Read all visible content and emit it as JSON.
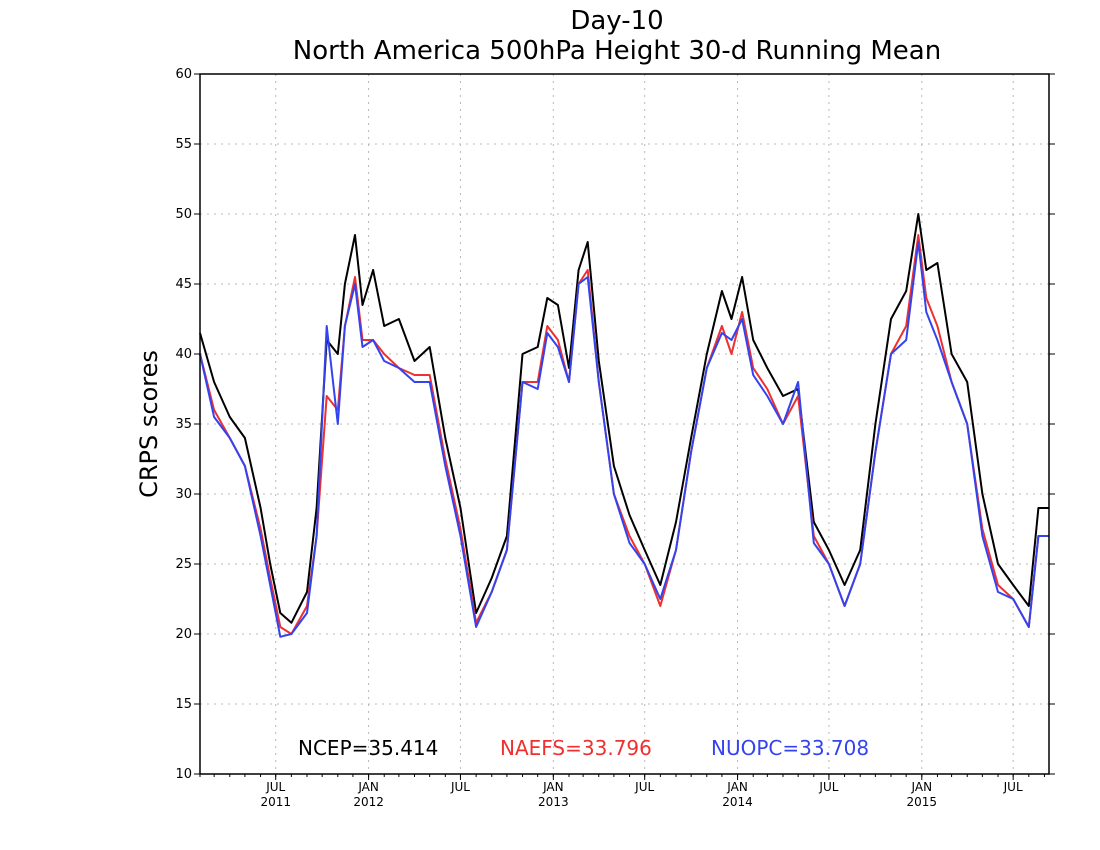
{
  "chart_data": {
    "type": "line",
    "title": "Day-10",
    "subtitle": "North America 500hPa Height 30-d Running Mean",
    "ylabel": "CRPS scores",
    "xlabel": "",
    "xlim": [
      "2011-02-01",
      "2015-09-10"
    ],
    "ylim": [
      10,
      60
    ],
    "yticks": [
      10,
      15,
      20,
      25,
      30,
      35,
      40,
      45,
      50,
      55,
      60
    ],
    "grid": true,
    "legend_position": "bottom-center",
    "xticks": [
      {
        "date": "2011-07-01",
        "label": "JUL",
        "year": "2011"
      },
      {
        "date": "2012-01-01",
        "label": "JAN",
        "year": "2012"
      },
      {
        "date": "2012-07-01",
        "label": "JUL",
        "year": ""
      },
      {
        "date": "2013-01-01",
        "label": "JAN",
        "year": "2013"
      },
      {
        "date": "2013-07-01",
        "label": "JUL",
        "year": ""
      },
      {
        "date": "2014-01-01",
        "label": "JAN",
        "year": "2014"
      },
      {
        "date": "2014-07-01",
        "label": "JUL",
        "year": ""
      },
      {
        "date": "2015-01-01",
        "label": "JAN",
        "year": "2015"
      },
      {
        "date": "2015-07-01",
        "label": "JUL",
        "year": ""
      }
    ],
    "series": [
      {
        "name": "NCEP",
        "legend": "NCEP=35.414",
        "color": "#000000",
        "x": [
          "2011-02-01",
          "2011-03-01",
          "2011-04-01",
          "2011-05-01",
          "2011-06-01",
          "2011-06-20",
          "2011-07-10",
          "2011-08-01",
          "2011-09-01",
          "2011-09-20",
          "2011-10-10",
          "2011-11-01",
          "2011-11-15",
          "2011-12-05",
          "2011-12-20",
          "2012-01-10",
          "2012-02-01",
          "2012-03-01",
          "2012-04-01",
          "2012-05-01",
          "2012-06-01",
          "2012-07-01",
          "2012-08-01",
          "2012-09-01",
          "2012-10-01",
          "2012-11-01",
          "2012-12-01",
          "2012-12-20",
          "2013-01-10",
          "2013-02-01",
          "2013-02-20",
          "2013-03-10",
          "2013-04-01",
          "2013-05-01",
          "2013-06-01",
          "2013-07-01",
          "2013-08-01",
          "2013-09-01",
          "2013-10-01",
          "2013-11-01",
          "2013-12-01",
          "2013-12-20",
          "2014-01-10",
          "2014-02-01",
          "2014-03-01",
          "2014-04-01",
          "2014-05-01",
          "2014-06-01",
          "2014-07-01",
          "2014-08-01",
          "2014-09-01",
          "2014-10-01",
          "2014-11-01",
          "2014-12-01",
          "2014-12-25",
          "2015-01-10",
          "2015-02-01",
          "2015-03-01",
          "2015-04-01",
          "2015-05-01",
          "2015-06-01",
          "2015-07-01",
          "2015-08-01",
          "2015-08-20",
          "2015-09-10"
        ],
        "values": [
          41.5,
          38,
          35.5,
          34,
          29,
          25,
          21.5,
          20.8,
          23,
          29,
          41,
          40,
          45,
          48.5,
          43.5,
          46,
          42,
          42.5,
          39.5,
          40.5,
          34,
          29,
          21.5,
          24,
          27,
          40,
          40.5,
          44,
          43.5,
          39,
          46,
          48,
          39.5,
          32,
          28.5,
          26,
          23.5,
          28,
          34,
          40,
          44.5,
          42.5,
          45.5,
          41,
          39,
          37,
          37.5,
          28,
          26,
          23.5,
          26,
          35,
          42.5,
          44.5,
          50,
          46,
          46.5,
          40,
          38,
          30,
          25,
          23.5,
          22,
          29,
          29
        ]
      },
      {
        "name": "NAEFS",
        "legend": "NAEFS=33.796",
        "color": "#ee3030",
        "x": [
          "2011-02-01",
          "2011-03-01",
          "2011-04-01",
          "2011-05-01",
          "2011-06-01",
          "2011-06-20",
          "2011-07-10",
          "2011-08-01",
          "2011-09-01",
          "2011-09-20",
          "2011-10-10",
          "2011-11-01",
          "2011-11-15",
          "2011-12-05",
          "2011-12-20",
          "2012-01-10",
          "2012-02-01",
          "2012-03-01",
          "2012-04-01",
          "2012-05-01",
          "2012-06-01",
          "2012-07-01",
          "2012-08-01",
          "2012-09-01",
          "2012-10-01",
          "2012-11-01",
          "2012-12-01",
          "2012-12-20",
          "2013-01-10",
          "2013-02-01",
          "2013-02-20",
          "2013-03-10",
          "2013-04-01",
          "2013-05-01",
          "2013-06-01",
          "2013-07-01",
          "2013-08-01",
          "2013-09-01",
          "2013-10-01",
          "2013-11-01",
          "2013-12-01",
          "2013-12-20",
          "2014-01-10",
          "2014-02-01",
          "2014-03-01",
          "2014-04-01",
          "2014-05-01",
          "2014-06-01",
          "2014-07-01",
          "2014-08-01",
          "2014-09-01",
          "2014-10-01",
          "2014-11-01",
          "2014-12-01",
          "2014-12-25",
          "2015-01-10",
          "2015-02-01",
          "2015-03-01",
          "2015-04-01",
          "2015-05-01",
          "2015-06-01",
          "2015-07-01",
          "2015-08-01",
          "2015-08-20",
          "2015-09-10"
        ],
        "values": [
          40,
          36,
          34,
          32,
          27.5,
          24,
          20.5,
          20,
          22,
          27,
          37,
          36,
          42,
          45.5,
          41,
          41,
          40,
          39,
          38.5,
          38.5,
          32.5,
          27.5,
          20.8,
          23,
          26,
          38,
          38,
          42,
          41,
          38,
          45,
          46,
          38,
          30,
          27,
          25,
          22,
          26,
          33,
          39,
          42,
          40,
          43,
          39,
          37.5,
          35,
          37,
          27,
          25,
          22,
          25,
          33,
          40,
          42,
          48.5,
          44,
          42,
          38,
          35,
          27.5,
          23.5,
          22.5,
          20.5,
          27,
          27
        ]
      },
      {
        "name": "NUOPC",
        "legend": "NUOPC=33.708",
        "color": "#3344ee",
        "x": [
          "2011-02-01",
          "2011-03-01",
          "2011-04-01",
          "2011-05-01",
          "2011-06-01",
          "2011-06-20",
          "2011-07-10",
          "2011-08-01",
          "2011-09-01",
          "2011-09-20",
          "2011-10-10",
          "2011-11-01",
          "2011-11-15",
          "2011-12-05",
          "2011-12-20",
          "2012-01-10",
          "2012-02-01",
          "2012-03-01",
          "2012-04-01",
          "2012-05-01",
          "2012-06-01",
          "2012-07-01",
          "2012-08-01",
          "2012-09-01",
          "2012-10-01",
          "2012-11-01",
          "2012-12-01",
          "2012-12-20",
          "2013-01-10",
          "2013-02-01",
          "2013-02-20",
          "2013-03-10",
          "2013-04-01",
          "2013-05-01",
          "2013-06-01",
          "2013-07-01",
          "2013-08-01",
          "2013-09-01",
          "2013-10-01",
          "2013-11-01",
          "2013-12-01",
          "2013-12-20",
          "2014-01-10",
          "2014-02-01",
          "2014-03-01",
          "2014-04-01",
          "2014-05-01",
          "2014-06-01",
          "2014-07-01",
          "2014-08-01",
          "2014-09-01",
          "2014-10-01",
          "2014-11-01",
          "2014-12-01",
          "2014-12-25",
          "2015-01-10",
          "2015-02-01",
          "2015-03-01",
          "2015-04-01",
          "2015-05-01",
          "2015-06-01",
          "2015-07-01",
          "2015-08-01",
          "2015-08-20",
          "2015-09-10"
        ],
        "values": [
          40,
          35.5,
          34,
          32,
          27,
          23.5,
          19.8,
          20,
          21.5,
          27,
          42,
          35,
          42,
          45,
          40.5,
          41,
          39.5,
          39,
          38,
          38,
          32,
          27,
          20.5,
          23,
          26,
          38,
          37.5,
          41.5,
          40.5,
          38,
          45,
          45.5,
          38,
          30,
          26.5,
          25,
          22.5,
          26,
          33,
          39,
          41.5,
          41,
          42.5,
          38.5,
          37,
          35,
          38,
          26.5,
          25,
          22,
          25,
          33,
          40,
          41,
          48,
          43,
          41,
          38,
          35,
          27,
          23,
          22.5,
          20.5,
          27,
          27
        ]
      }
    ]
  }
}
